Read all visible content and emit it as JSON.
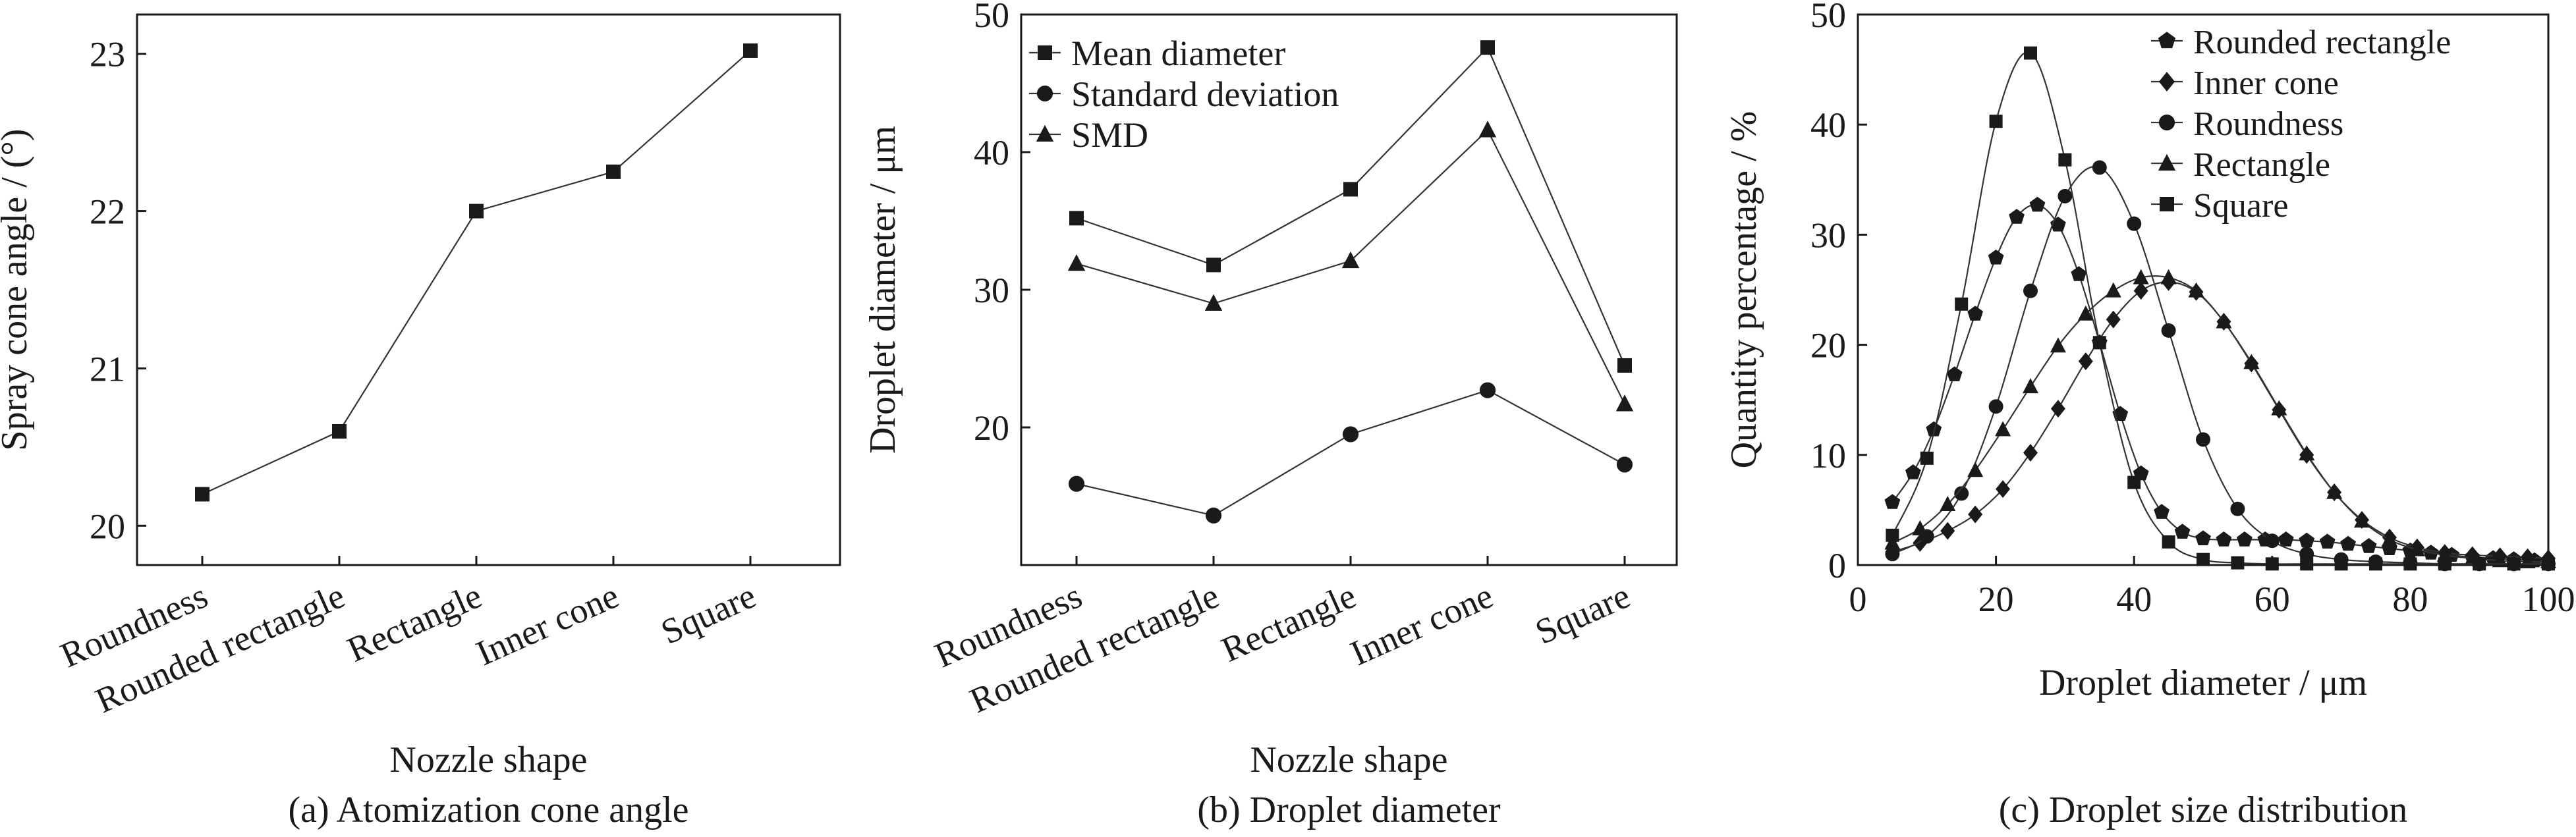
{
  "chart_data": [
    {
      "id": "a",
      "type": "line",
      "caption": "(a) Atomization cone angle",
      "xlabel": "Nozzle shape",
      "ylabel": "Spray cone angle / (°)",
      "categories": [
        "Roundness",
        "Rounded rectangle",
        "Rectangle",
        "Inner cone",
        "Square"
      ],
      "ylim": [
        19.75,
        23.25
      ],
      "yticks": [
        20,
        21,
        22,
        23
      ],
      "grid": false,
      "series": [
        {
          "marker": "square",
          "values": [
            20.2,
            20.6,
            22.0,
            22.25,
            23.02
          ]
        }
      ]
    },
    {
      "id": "b",
      "type": "line",
      "caption": "(b) Droplet diameter",
      "xlabel": "Nozzle shape",
      "ylabel": "Droplet diameter / μm",
      "categories": [
        "Roundness",
        "Rounded rectangle",
        "Rectangle",
        "Inner cone",
        "Square"
      ],
      "ylim": [
        10,
        50
      ],
      "yticks": [
        20,
        30,
        40,
        50
      ],
      "grid": false,
      "legend": "top-left",
      "series": [
        {
          "name": "Mean diameter",
          "marker": "square",
          "values": [
            35.2,
            31.8,
            37.3,
            47.6,
            24.5
          ]
        },
        {
          "name": "Standard deviation",
          "marker": "circle",
          "values": [
            15.9,
            13.6,
            19.5,
            22.7,
            17.3
          ]
        },
        {
          "name": "SMD",
          "marker": "triangle",
          "values": [
            31.9,
            29.0,
            32.1,
            41.6,
            21.7
          ]
        }
      ]
    },
    {
      "id": "c",
      "type": "line",
      "caption": "(c) Droplet size distribution",
      "xlabel": "Droplet diameter / μm",
      "ylabel": "Quantity percentage / %",
      "xlim": [
        0,
        100
      ],
      "xticks": [
        0,
        20,
        40,
        60,
        80,
        100
      ],
      "ylim": [
        0,
        50
      ],
      "yticks": [
        0,
        10,
        20,
        30,
        40,
        50
      ],
      "grid": false,
      "legend": "top-right",
      "series": [
        {
          "name": "Rounded rectangle",
          "marker": "pentagon",
          "x": [
            5,
            8,
            11,
            14,
            17,
            20,
            23,
            26,
            29,
            32,
            35,
            38,
            41,
            44,
            47,
            50,
            53,
            56,
            59,
            62,
            65,
            68,
            71,
            74,
            77,
            80,
            83,
            86,
            89,
            92,
            95,
            98
          ],
          "y": [
            5.7,
            8.4,
            12.3,
            17.3,
            22.8,
            27.9,
            31.6,
            32.7,
            30.9,
            26.4,
            20.2,
            13.7,
            8.3,
            4.8,
            3.0,
            2.4,
            2.3,
            2.3,
            2.3,
            2.3,
            2.2,
            2.1,
            1.9,
            1.7,
            1.5,
            1.3,
            1.1,
            0.9,
            0.7,
            0.6,
            0.5,
            0.4
          ]
        },
        {
          "name": "Inner cone",
          "marker": "diamond",
          "x": [
            5,
            9,
            13,
            17,
            21,
            25,
            29,
            33,
            37,
            41,
            45,
            49,
            53,
            57,
            61,
            65,
            69,
            73,
            77,
            81,
            85,
            89,
            93,
            97,
            100
          ],
          "y": [
            1.2,
            2.0,
            3.1,
            4.6,
            6.9,
            10.2,
            14.2,
            18.5,
            22.3,
            24.9,
            25.7,
            24.8,
            22.1,
            18.3,
            14.1,
            10.0,
            6.6,
            4.1,
            2.5,
            1.6,
            1.1,
            0.9,
            0.8,
            0.7,
            0.6
          ]
        },
        {
          "name": "Roundness",
          "marker": "circle",
          "x": [
            5,
            10,
            15,
            20,
            25,
            30,
            35,
            40,
            45,
            50,
            55,
            60,
            65,
            70,
            75,
            80,
            85,
            90,
            95,
            100
          ],
          "y": [
            1.0,
            2.6,
            6.5,
            14.4,
            24.9,
            33.5,
            36.1,
            31.0,
            21.3,
            11.4,
            5.1,
            2.2,
            1.0,
            0.5,
            0.3,
            0.2,
            0.1,
            0.1,
            0.1,
            0.1
          ]
        },
        {
          "name": "Rectangle",
          "marker": "triangle",
          "x": [
            5,
            9,
            13,
            17,
            21,
            25,
            29,
            33,
            37,
            41,
            45,
            49,
            53,
            57,
            61,
            65,
            69,
            73,
            77,
            81,
            85,
            89,
            93,
            97,
            100
          ],
          "y": [
            2.0,
            3.3,
            5.5,
            8.6,
            12.3,
            16.2,
            19.9,
            22.8,
            24.9,
            26.1,
            26.1,
            24.9,
            22.1,
            18.4,
            14.2,
            10.1,
            6.6,
            4.0,
            2.3,
            1.4,
            0.9,
            0.6,
            0.4,
            0.3,
            0.3
          ]
        },
        {
          "name": "Square",
          "marker": "square",
          "x": [
            5,
            10,
            15,
            20,
            25,
            30,
            35,
            40,
            45,
            50,
            55,
            60,
            65,
            70,
            75,
            80,
            85,
            90,
            95,
            100
          ],
          "y": [
            2.7,
            9.7,
            23.7,
            40.3,
            46.5,
            36.8,
            20.2,
            7.5,
            2.1,
            0.5,
            0.2,
            0.1,
            0.1,
            0.1,
            0.1,
            0.1,
            0.1,
            0.1,
            0.1,
            0.1
          ]
        }
      ]
    }
  ]
}
